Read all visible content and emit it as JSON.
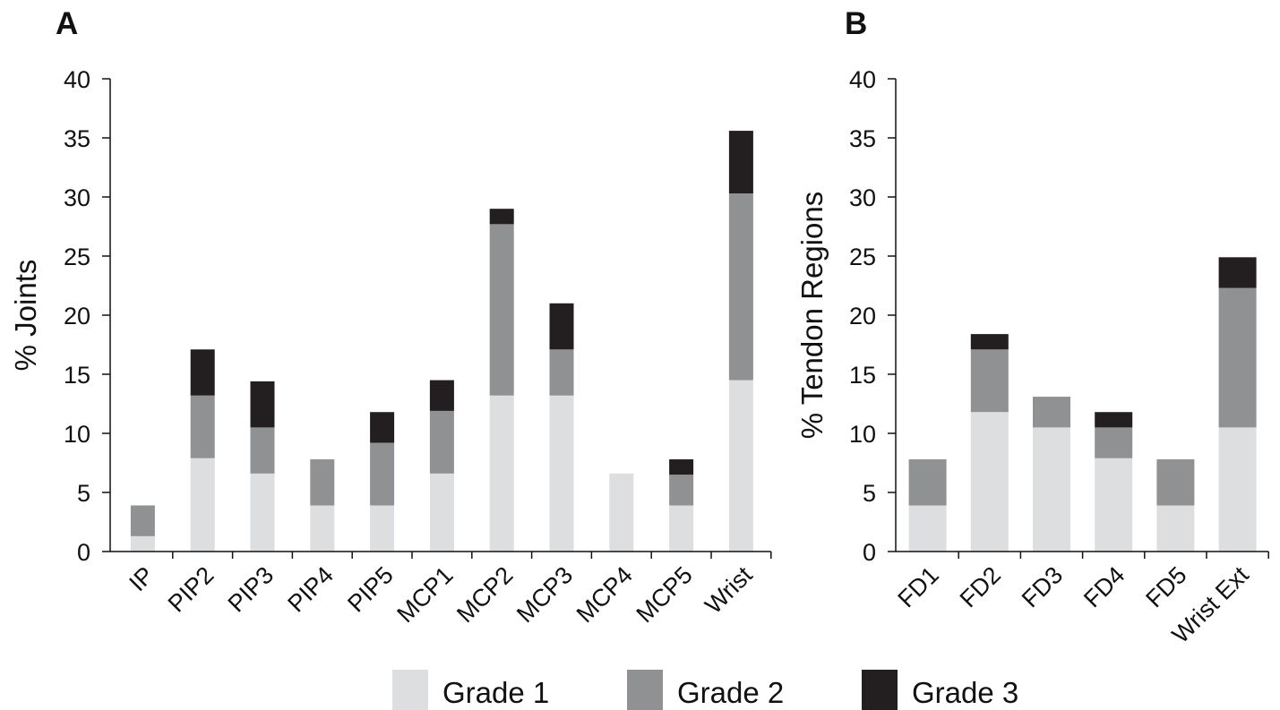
{
  "legend": {
    "items": [
      {
        "label": "Grade 1",
        "color": "#dcdee0"
      },
      {
        "label": "Grade 2",
        "color": "#8f9193"
      },
      {
        "label": "Grade 3",
        "color": "#231f20"
      }
    ]
  },
  "chart_data": [
    {
      "type": "bar",
      "stacked": true,
      "panel": "A",
      "ylabel": "% Joints",
      "xlabel": "",
      "ylim": [
        0,
        40
      ],
      "yticks": [
        "0",
        "5",
        "10",
        "15",
        "20",
        "25",
        "30",
        "35",
        "40"
      ],
      "grid": false,
      "legend_position": "bottom",
      "categories": [
        "IP",
        "PIP2",
        "PIP3",
        "PIP4",
        "PIP5",
        "MCP1",
        "MCP2",
        "MCP3",
        "MCP4",
        "MCP5",
        "Wrist"
      ],
      "series": [
        {
          "name": "Grade 1",
          "values": [
            1.3,
            7.9,
            6.6,
            3.9,
            3.9,
            6.6,
            13.2,
            13.2,
            6.6,
            3.9,
            14.5
          ]
        },
        {
          "name": "Grade 2",
          "values": [
            2.6,
            5.3,
            3.9,
            3.9,
            5.3,
            5.3,
            14.5,
            3.9,
            0,
            2.6,
            15.8
          ]
        },
        {
          "name": "Grade 3",
          "values": [
            0,
            3.9,
            3.9,
            0,
            2.6,
            2.6,
            1.3,
            3.9,
            0,
            1.3,
            5.3
          ]
        }
      ]
    },
    {
      "type": "bar",
      "stacked": true,
      "panel": "B",
      "ylabel": "% Tendon Regions",
      "xlabel": "",
      "ylim": [
        0,
        40
      ],
      "yticks": [
        "0",
        "5",
        "10",
        "15",
        "20",
        "25",
        "30",
        "35",
        "40"
      ],
      "grid": false,
      "legend_position": "bottom",
      "categories": [
        "FD1",
        "FD2",
        "FD3",
        "FD4",
        "FD5",
        "Wrist Ext"
      ],
      "series": [
        {
          "name": "Grade 1",
          "values": [
            3.9,
            11.8,
            10.5,
            7.9,
            3.9,
            10.5
          ]
        },
        {
          "name": "Grade 2",
          "values": [
            3.9,
            5.3,
            2.6,
            2.6,
            3.9,
            11.8
          ]
        },
        {
          "name": "Grade 3",
          "values": [
            0,
            1.3,
            0,
            1.3,
            0,
            2.6
          ]
        }
      ]
    }
  ]
}
